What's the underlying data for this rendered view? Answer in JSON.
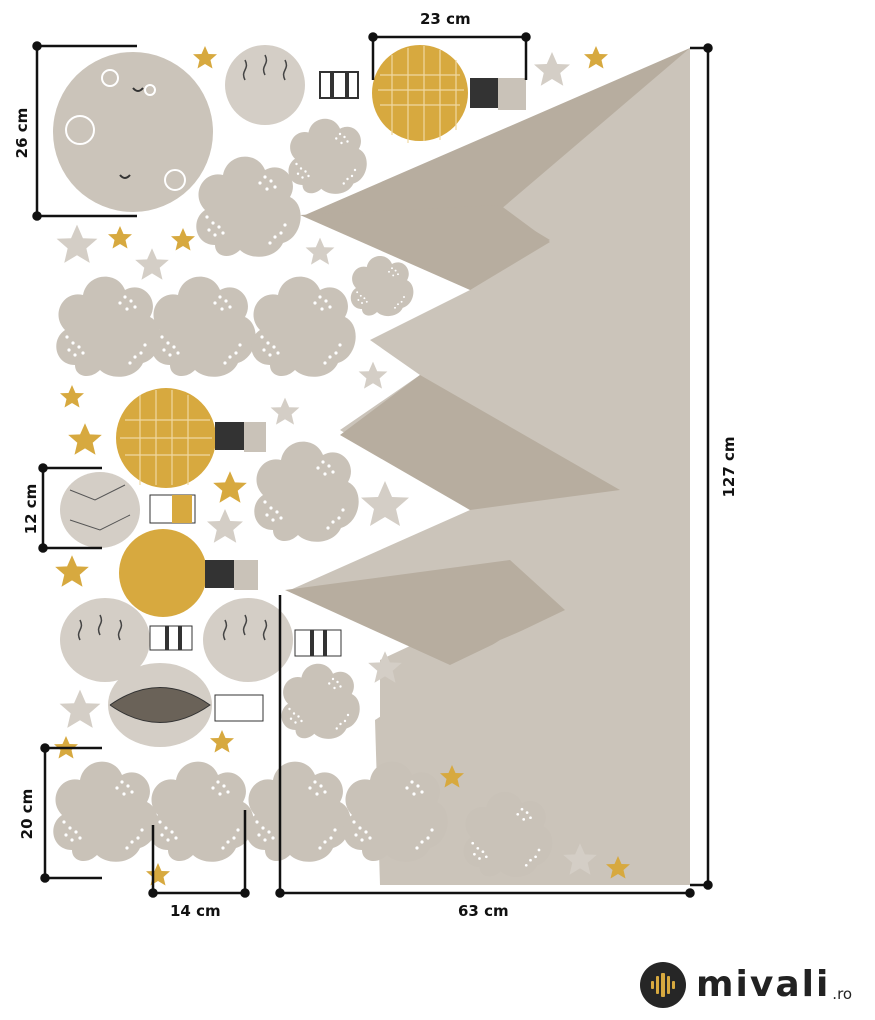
{
  "colors": {
    "mountain_light": "#cbc4ba",
    "mountain_dark": "#b7ad9f",
    "cloud": "#c9c2b8",
    "gold": "#d7a93f",
    "star_gray": "#d4cec6",
    "dim_line": "#111111"
  },
  "dimensions": {
    "moon": "26 cm",
    "balloon_gold_top": "23 cm",
    "balloon_small": "12 cm",
    "cloud_height": "20 cm",
    "cloud_width": "14 cm",
    "mountain_width": "63 cm",
    "mountain_height": "127 cm"
  },
  "brand": {
    "name": "mivali",
    "tld": ".ro",
    "icon": "soundwave-logo-icon"
  }
}
